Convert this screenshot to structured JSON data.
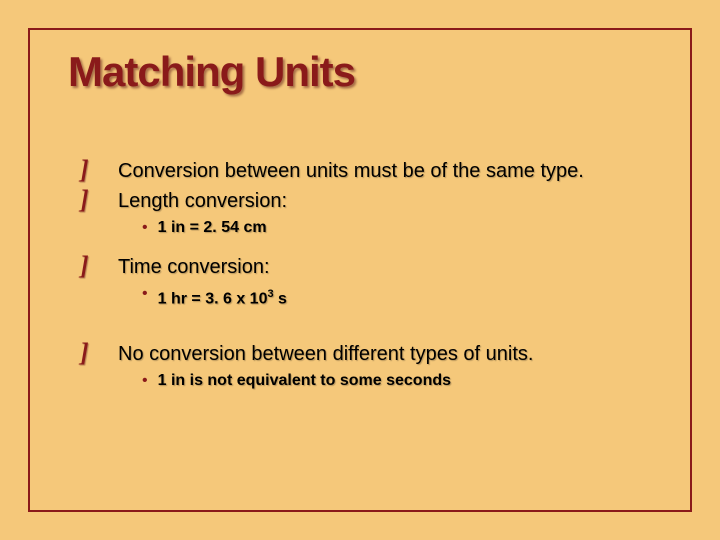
{
  "colors": {
    "background": "#f5c87a",
    "border": "#8a1a1a",
    "title": "#8a1a1a",
    "bullet": "#8a1a1a",
    "text": "#000000"
  },
  "title": "Matching Units",
  "items": {
    "i1": "Conversion between units must be of the same type.",
    "i2": "Length conversion:",
    "i2a": "1 in = 2. 54 cm",
    "i3": "Time conversion:",
    "i3a_pre": "1 hr = 3. 6 x 10",
    "i3a_sup": "3",
    "i3a_post": " s",
    "i4": "No conversion between different types of units.",
    "i4a": "1 in  is not equivalent to some seconds"
  },
  "typography": {
    "title_fontsize": 42,
    "main_fontsize": 20,
    "sub_fontsize": 16
  }
}
